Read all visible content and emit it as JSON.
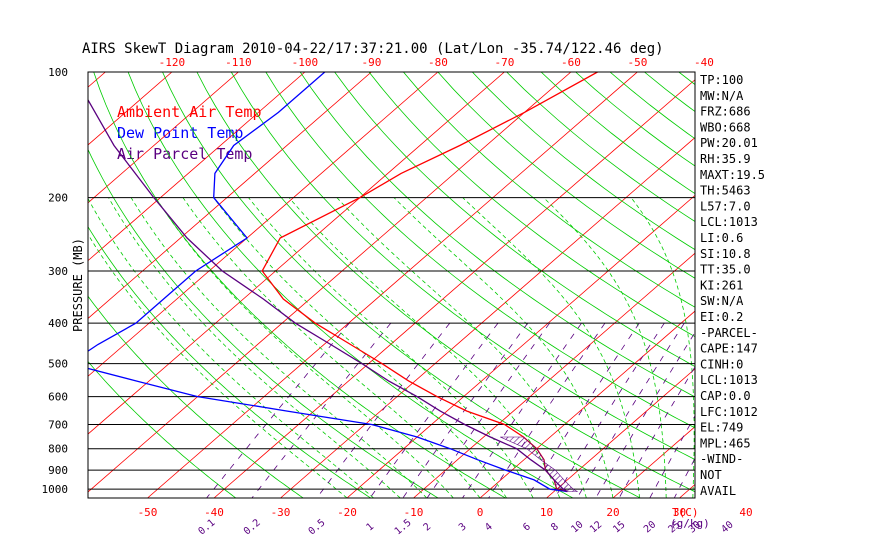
{
  "title": "AIRS SkewT Diagram 2010-04-22/17:37:21.00 (Lat/Lon -35.74/122.46 deg)",
  "chart_data": {
    "type": "line",
    "title": "AIRS SkewT Diagram 2010-04-22/17:37:21.00 (Lat/Lon -35.74/122.46 deg)",
    "ylabel": "PRESSURE (MB)",
    "xlabel": "T(C)",
    "mixing_ratio_label": "(g/kg)",
    "pressure_ticks": [
      100,
      200,
      300,
      400,
      500,
      600,
      700,
      800,
      900,
      1000
    ],
    "top_temp_ticks": [
      -120,
      -110,
      -100,
      -90,
      -80,
      -70,
      -60,
      -50,
      -40
    ],
    "bottom_temp_ticks": [
      -50,
      -40,
      -30,
      -20,
      -10,
      0,
      10,
      20,
      30,
      40
    ],
    "mixing_ratio_ticks": [
      "0.1",
      "0.2",
      "0.5",
      "1",
      "1.5",
      "2",
      "3",
      "4",
      "6",
      "8",
      "10",
      "12",
      "15",
      "20",
      "25",
      "30",
      "40"
    ],
    "legend": [
      {
        "name": "Ambient Air Temp",
        "color": "#ff0000"
      },
      {
        "name": "Dew Point Temp",
        "color": "#0000ff"
      },
      {
        "name": "Air Parcel Temp",
        "color": "#5a0080"
      }
    ],
    "series": [
      {
        "name": "Ambient Air Temp",
        "color": "#ff0000",
        "points": [
          [
            100,
            -56
          ],
          [
            125,
            -60
          ],
          [
            150,
            -64
          ],
          [
            175,
            -68
          ],
          [
            200,
            -70
          ],
          [
            250,
            -75
          ],
          [
            300,
            -72
          ],
          [
            350,
            -64
          ],
          [
            400,
            -55
          ],
          [
            450,
            -46
          ],
          [
            500,
            -38
          ],
          [
            550,
            -31
          ],
          [
            600,
            -24
          ],
          [
            650,
            -17
          ],
          [
            700,
            -9
          ],
          [
            750,
            -4
          ],
          [
            800,
            0
          ],
          [
            850,
            3
          ],
          [
            900,
            5
          ],
          [
            950,
            8
          ],
          [
            1000,
            10
          ],
          [
            1013,
            12
          ]
        ]
      },
      {
        "name": "Dew Point Temp",
        "color": "#0000ff",
        "points": [
          [
            100,
            -97
          ],
          [
            125,
            -97
          ],
          [
            150,
            -98
          ],
          [
            175,
            -96
          ],
          [
            200,
            -92
          ],
          [
            250,
            -80
          ],
          [
            300,
            -82
          ],
          [
            350,
            -82
          ],
          [
            400,
            -82
          ],
          [
            450,
            -84
          ],
          [
            500,
            -85
          ],
          [
            550,
            -72
          ],
          [
            600,
            -60
          ],
          [
            650,
            -44
          ],
          [
            700,
            -29
          ],
          [
            750,
            -20
          ],
          [
            800,
            -13
          ],
          [
            850,
            -7
          ],
          [
            900,
            -1
          ],
          [
            950,
            5
          ],
          [
            1000,
            9
          ],
          [
            1013,
            12
          ]
        ]
      },
      {
        "name": "Air Parcel Temp",
        "color": "#5a0080",
        "points": [
          [
            100,
            -135
          ],
          [
            150,
            -116
          ],
          [
            200,
            -101
          ],
          [
            250,
            -89
          ],
          [
            300,
            -78
          ],
          [
            350,
            -67
          ],
          [
            400,
            -58
          ],
          [
            450,
            -49
          ],
          [
            500,
            -41
          ],
          [
            550,
            -34
          ],
          [
            600,
            -27
          ],
          [
            650,
            -21
          ],
          [
            700,
            -15
          ],
          [
            750,
            -9
          ],
          [
            800,
            -3
          ],
          [
            850,
            1
          ],
          [
            900,
            5
          ],
          [
            950,
            8
          ],
          [
            1000,
            11
          ],
          [
            1013,
            12
          ]
        ]
      }
    ]
  },
  "info_panel": [
    "TP:100",
    "MW:N/A",
    "FRZ:686",
    "WBO:668",
    "PW:20.01",
    "RH:35.9",
    "MAXT:19.5",
    "TH:5463",
    "L57:7.0",
    "LCL:1013",
    "LI:0.6",
    "SI:10.8",
    "TT:35.0",
    "KI:261",
    "SW:N/A",
    "EI:0.2",
    "-PARCEL-",
    "CAPE:147",
    "CINH:0",
    "LCL:1013",
    "CAP:0.0",
    "LFC:1012",
    "EL:749",
    "MPL:465",
    "-WIND-",
    "NOT",
    "AVAIL"
  ],
  "colors": {
    "isotherm": "#ff0000",
    "dry_adiabat": "#00cc00",
    "moist_adiabat": "#00cc00",
    "mixing_ratio": "#5a0080",
    "isobar": "#000000",
    "top_axis": "#ff0000",
    "bottom_axis": "#ff0000",
    "mixing_axis": "#5a0080"
  }
}
